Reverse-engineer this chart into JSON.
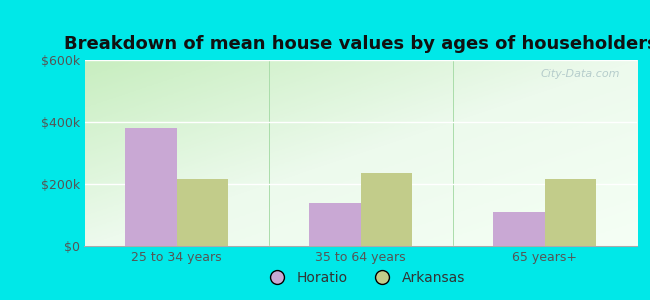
{
  "title": "Breakdown of mean house values by ages of householders",
  "categories": [
    "25 to 34 years",
    "35 to 64 years",
    "65 years+"
  ],
  "horatio_values": [
    380000,
    140000,
    110000
  ],
  "arkansas_values": [
    215000,
    235000,
    215000
  ],
  "horatio_color": "#c9a8d4",
  "arkansas_color": "#c2cc8a",
  "ylim": [
    0,
    600000
  ],
  "yticks": [
    0,
    200000,
    400000,
    600000
  ],
  "ytick_labels": [
    "$0",
    "$200k",
    "$400k",
    "$600k"
  ],
  "outer_bg": "#00e8e8",
  "plot_bg_topleft": "#c8eec0",
  "plot_bg_bottomright": "#f0fff0",
  "title_fontsize": 13,
  "legend_labels": [
    "Horatio",
    "Arkansas"
  ],
  "bar_width": 0.28,
  "watermark": "City-Data.com"
}
